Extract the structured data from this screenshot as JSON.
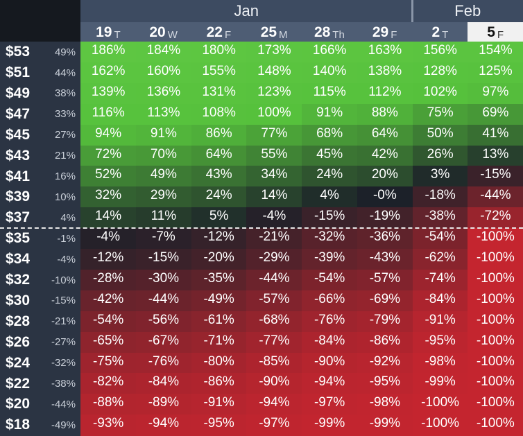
{
  "months": [
    {
      "label": "Jan",
      "span": 6
    },
    {
      "label": "Feb",
      "span": 2
    }
  ],
  "days": [
    {
      "num": "19",
      "dow": "T"
    },
    {
      "num": "20",
      "dow": "W"
    },
    {
      "num": "22",
      "dow": "F"
    },
    {
      "num": "25",
      "dow": "M"
    },
    {
      "num": "28",
      "dow": "Th"
    },
    {
      "num": "29",
      "dow": "F"
    },
    {
      "num": "2",
      "dow": "T"
    },
    {
      "num": "5",
      "dow": "F"
    }
  ],
  "selected_day_index": 7,
  "strike_after_row": 8,
  "colors": {
    "green_strong": "#56c13c",
    "green_light": "#6fd24f",
    "red_strong": "#c4252f",
    "dark": "#1c2129",
    "header": "#4e5d74"
  },
  "rows": [
    {
      "price": "$53",
      "change": "49%",
      "values": [
        "186%",
        "184%",
        "180%",
        "173%",
        "166%",
        "163%",
        "156%",
        "154%"
      ]
    },
    {
      "price": "$51",
      "change": "44%",
      "values": [
        "162%",
        "160%",
        "155%",
        "148%",
        "140%",
        "138%",
        "128%",
        "125%"
      ]
    },
    {
      "price": "$49",
      "change": "38%",
      "values": [
        "139%",
        "136%",
        "131%",
        "123%",
        "115%",
        "112%",
        "102%",
        "97%"
      ]
    },
    {
      "price": "$47",
      "change": "33%",
      "values": [
        "116%",
        "113%",
        "108%",
        "100%",
        "91%",
        "88%",
        "75%",
        "69%"
      ]
    },
    {
      "price": "$45",
      "change": "27%",
      "values": [
        "94%",
        "91%",
        "86%",
        "77%",
        "68%",
        "64%",
        "50%",
        "41%"
      ]
    },
    {
      "price": "$43",
      "change": "21%",
      "values": [
        "72%",
        "70%",
        "64%",
        "55%",
        "45%",
        "42%",
        "26%",
        "13%"
      ]
    },
    {
      "price": "$41",
      "change": "16%",
      "values": [
        "52%",
        "49%",
        "43%",
        "34%",
        "24%",
        "20%",
        "3%",
        "-15%"
      ]
    },
    {
      "price": "$39",
      "change": "10%",
      "values": [
        "32%",
        "29%",
        "24%",
        "14%",
        "4%",
        "-0%",
        "-18%",
        "-44%"
      ]
    },
    {
      "price": "$37",
      "change": "4%",
      "values": [
        "14%",
        "11%",
        "5%",
        "-4%",
        "-15%",
        "-19%",
        "-38%",
        "-72%"
      ]
    },
    {
      "price": "$35",
      "change": "-1%",
      "values": [
        "-4%",
        "-7%",
        "-12%",
        "-21%",
        "-32%",
        "-36%",
        "-54%",
        "-100%"
      ]
    },
    {
      "price": "$34",
      "change": "-4%",
      "values": [
        "-12%",
        "-15%",
        "-20%",
        "-29%",
        "-39%",
        "-43%",
        "-62%",
        "-100%"
      ]
    },
    {
      "price": "$32",
      "change": "-10%",
      "values": [
        "-28%",
        "-30%",
        "-35%",
        "-44%",
        "-54%",
        "-57%",
        "-74%",
        "-100%"
      ]
    },
    {
      "price": "$30",
      "change": "-15%",
      "values": [
        "-42%",
        "-44%",
        "-49%",
        "-57%",
        "-66%",
        "-69%",
        "-84%",
        "-100%"
      ]
    },
    {
      "price": "$28",
      "change": "-21%",
      "values": [
        "-54%",
        "-56%",
        "-61%",
        "-68%",
        "-76%",
        "-79%",
        "-91%",
        "-100%"
      ]
    },
    {
      "price": "$26",
      "change": "-27%",
      "values": [
        "-65%",
        "-67%",
        "-71%",
        "-77%",
        "-84%",
        "-86%",
        "-95%",
        "-100%"
      ]
    },
    {
      "price": "$24",
      "change": "-32%",
      "values": [
        "-75%",
        "-76%",
        "-80%",
        "-85%",
        "-90%",
        "-92%",
        "-98%",
        "-100%"
      ]
    },
    {
      "price": "$22",
      "change": "-38%",
      "values": [
        "-82%",
        "-84%",
        "-86%",
        "-90%",
        "-94%",
        "-95%",
        "-99%",
        "-100%"
      ]
    },
    {
      "price": "$20",
      "change": "-44%",
      "values": [
        "-88%",
        "-89%",
        "-91%",
        "-94%",
        "-97%",
        "-98%",
        "-100%",
        "-100%"
      ]
    },
    {
      "price": "$18",
      "change": "-49%",
      "values": [
        "-93%",
        "-94%",
        "-95%",
        "-97%",
        "-99%",
        "-99%",
        "-100%",
        "-100%"
      ]
    }
  ]
}
